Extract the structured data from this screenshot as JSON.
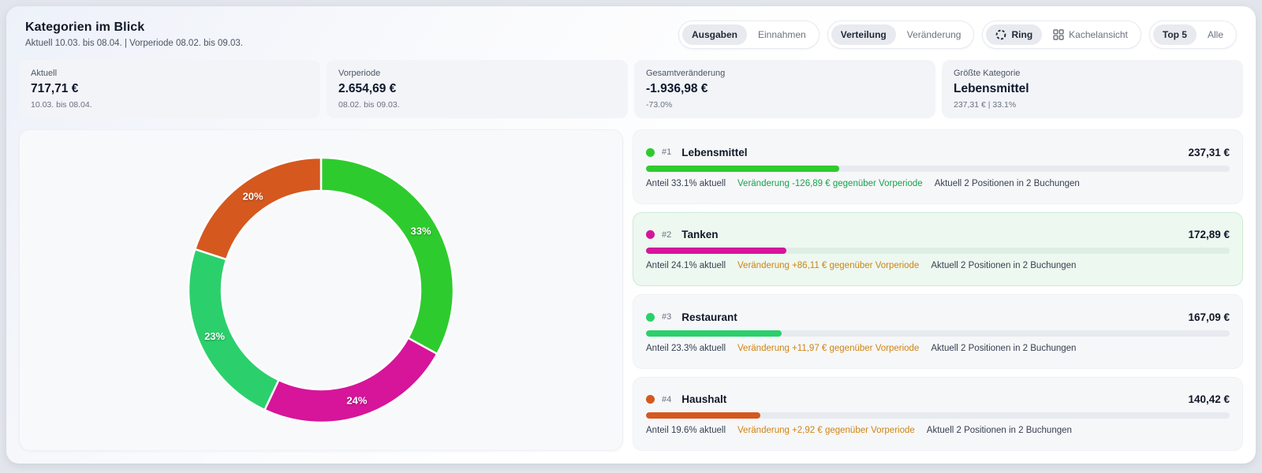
{
  "header": {
    "title": "Kategorien im Blick",
    "subtitle": "Aktuell 10.03. bis 08.04. | Vorperiode 08.02. bis 09.03."
  },
  "toggles": [
    {
      "name": "ausgaben-einnahmen",
      "options": [
        {
          "label": "Ausgaben",
          "active": true,
          "icon": null
        },
        {
          "label": "Einnahmen",
          "active": false,
          "icon": null
        }
      ]
    },
    {
      "name": "verteilung-veraenderung",
      "options": [
        {
          "label": "Verteilung",
          "active": true,
          "icon": null
        },
        {
          "label": "Veränderung",
          "active": false,
          "icon": null
        }
      ]
    },
    {
      "name": "ansicht",
      "options": [
        {
          "label": "Ring",
          "active": true,
          "icon": "ring-icon"
        },
        {
          "label": "Kachelansicht",
          "active": false,
          "icon": "grid-icon"
        }
      ]
    },
    {
      "name": "anzahl",
      "options": [
        {
          "label": "Top 5",
          "active": true,
          "icon": null
        },
        {
          "label": "Alle",
          "active": false,
          "icon": null
        }
      ]
    }
  ],
  "stats": [
    {
      "label": "Aktuell",
      "value": "717,71 €",
      "sub": "10.03. bis 08.04."
    },
    {
      "label": "Vorperiode",
      "value": "2.654,69 €",
      "sub": "08.02. bis 09.03."
    },
    {
      "label": "Gesamtveränderung",
      "value": "-1.936,98 €",
      "sub": "-73.0%"
    },
    {
      "label": "Größte Kategorie",
      "value": "Lebensmittel",
      "sub": "237,31 € | 33.1%"
    }
  ],
  "chart_data": {
    "type": "pie",
    "donut": true,
    "categories": [
      "Lebensmittel",
      "Tanken",
      "Restaurant",
      "Haushalt"
    ],
    "values": [
      33,
      24,
      23,
      20
    ],
    "labels": [
      "33%",
      "24%",
      "23%",
      "20%"
    ],
    "colors": [
      "#2ecb2e",
      "#d6159a",
      "#2bd06c",
      "#d5581f"
    ],
    "start_angle_deg": 0,
    "direction": "clockwise",
    "legend_position": "none"
  },
  "categories": [
    {
      "rank": "#1",
      "name": "Lebensmittel",
      "value": "237,31 €",
      "color": "#2ecb2e",
      "share_pct": 33.1,
      "anteil_text": "Anteil 33.1% aktuell",
      "change_text": "Veränderung -126,89 € gegenüber Vorperiode",
      "change_color": "#16a34a",
      "bookings_text": "Aktuell 2 Positionen in 2 Buchungen",
      "highlighted": false
    },
    {
      "rank": "#2",
      "name": "Tanken",
      "value": "172,89 €",
      "color": "#d6159a",
      "share_pct": 24.1,
      "anteil_text": "Anteil 24.1% aktuell",
      "change_text": "Veränderung +86,11 € gegenüber Vorperiode",
      "change_color": "#d08413",
      "bookings_text": "Aktuell 2 Positionen in 2 Buchungen",
      "highlighted": true
    },
    {
      "rank": "#3",
      "name": "Restaurant",
      "value": "167,09 €",
      "color": "#2bd06c",
      "share_pct": 23.3,
      "anteil_text": "Anteil 23.3% aktuell",
      "change_text": "Veränderung +11,97 € gegenüber Vorperiode",
      "change_color": "#d08413",
      "bookings_text": "Aktuell 2 Positionen in 2 Buchungen",
      "highlighted": false
    },
    {
      "rank": "#4",
      "name": "Haushalt",
      "value": "140,42 €",
      "color": "#d5581f",
      "share_pct": 19.6,
      "anteil_text": "Anteil 19.6% aktuell",
      "change_text": "Veränderung +2,92 € gegenüber Vorperiode",
      "change_color": "#d08413",
      "bookings_text": "Aktuell 2 Positionen in 2 Buchungen",
      "highlighted": false
    }
  ]
}
